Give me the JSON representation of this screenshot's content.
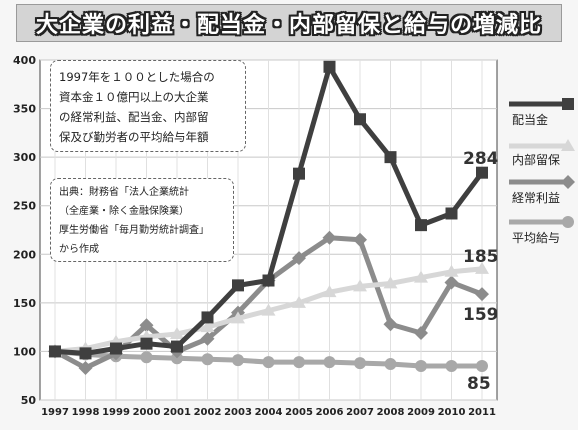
{
  "title": "大企業の利益・配当金・内部留保と給与の増減比",
  "description_lines": [
    "1997年を１００とした場合の",
    "資本金１０億円以上の大企業",
    "の経常利益、配当金、内部留",
    "保及び勤労者の平均給与年額"
  ],
  "source_lines": [
    "出典：財務省「法人企業統計",
    "（全産業・除く金融保険業）",
    "厚生労働省「毎月勤労統計調査」",
    "から作成"
  ],
  "chart_data": {
    "type": "line",
    "title": "大企業の利益・配当金・内部留保と給与の増減比",
    "categories": [
      "1997",
      "1998",
      "1999",
      "2000",
      "2001",
      "2002",
      "2003",
      "2004",
      "2005",
      "2006",
      "2007",
      "2008",
      "2009",
      "2010",
      "2011"
    ],
    "ylim": [
      50,
      400
    ],
    "yticks": [
      50,
      100,
      150,
      200,
      250,
      300,
      350,
      400
    ],
    "grid": true,
    "legend_position": "right",
    "series": [
      {
        "name": "配当金",
        "color": "#3f3f3f",
        "marker": "square",
        "values": [
          100,
          98,
          103,
          108,
          105,
          135,
          168,
          173,
          283,
          393,
          339,
          300,
          230,
          242,
          284
        ],
        "end_label": "284"
      },
      {
        "name": "内部留保",
        "color": "#d7d7d7",
        "marker": "triangle",
        "values": [
          100,
          103,
          110,
          115,
          118,
          125,
          134,
          142,
          150,
          161,
          167,
          170,
          176,
          182,
          185
        ],
        "end_label": "185"
      },
      {
        "name": "経常利益",
        "color": "#8c8c8c",
        "marker": "diamond",
        "values": [
          100,
          83,
          98,
          127,
          100,
          113,
          140,
          173,
          196,
          217,
          215,
          128,
          119,
          171,
          159
        ],
        "end_label": "159"
      },
      {
        "name": "平均給与",
        "color": "#a8a8a8",
        "marker": "circle",
        "values": [
          100,
          97,
          95,
          94,
          93,
          92,
          91,
          89,
          89,
          89,
          88,
          87,
          85,
          85,
          85
        ],
        "end_label": "85"
      }
    ]
  }
}
